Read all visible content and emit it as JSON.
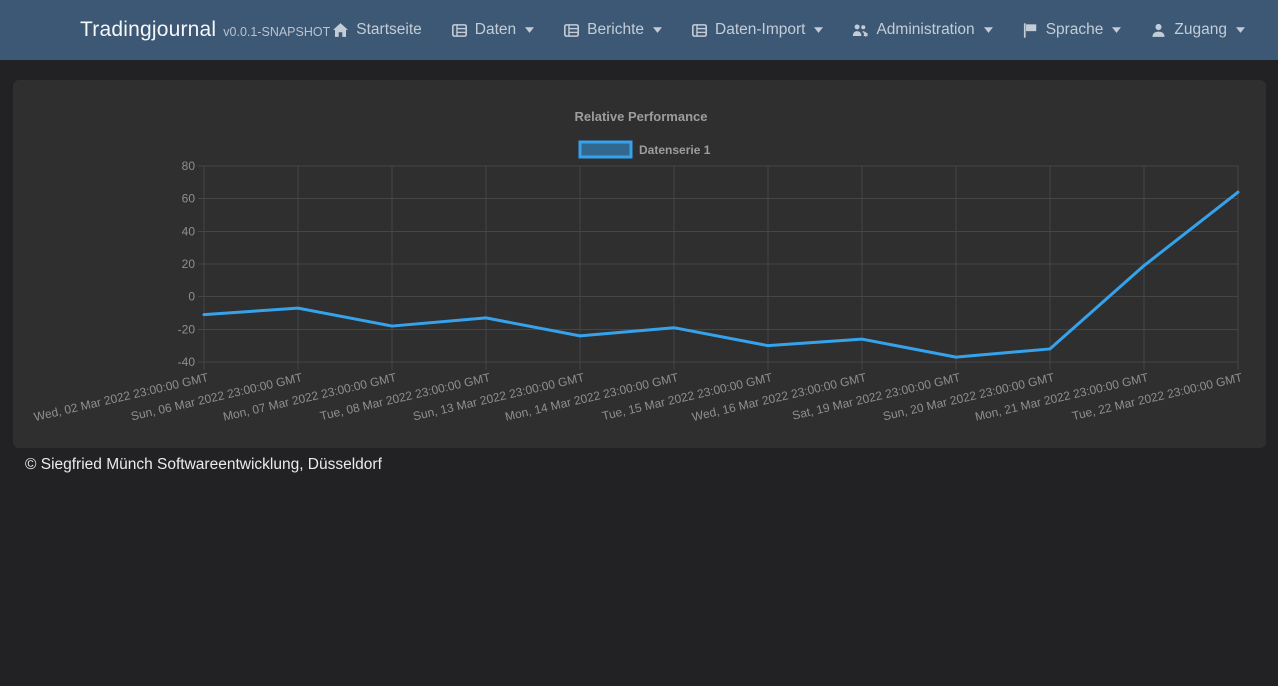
{
  "navbar": {
    "brand": "Tradingjournal",
    "version": "v0.0.1-SNAPSHOT",
    "background": "#3d5874",
    "items": [
      {
        "label": "Startseite",
        "icon": "home-icon",
        "dropdown": false
      },
      {
        "label": "Daten",
        "icon": "table-icon",
        "dropdown": true
      },
      {
        "label": "Berichte",
        "icon": "table-icon",
        "dropdown": true
      },
      {
        "label": "Daten-Import",
        "icon": "table-icon",
        "dropdown": true
      },
      {
        "label": "Administration",
        "icon": "users-gear-icon",
        "dropdown": true
      },
      {
        "label": "Sprache",
        "icon": "flag-icon",
        "dropdown": true
      },
      {
        "label": "Zugang",
        "icon": "user-icon",
        "dropdown": true
      }
    ]
  },
  "chart_data": {
    "type": "line",
    "title": "Relative Performance",
    "legend_position": "top",
    "grid": true,
    "grid_color": "#464646",
    "line_color": "#36a2eb",
    "legend_box_fill": "rgba(54,162,235,0.5)",
    "ylim": [
      -40,
      80
    ],
    "yticks": [
      80,
      60,
      40,
      20,
      0,
      -20,
      -40
    ],
    "categories": [
      "Wed, 02 Mar 2022 23:00:00 GMT",
      "Sun, 06 Mar 2022 23:00:00 GMT",
      "Mon, 07 Mar 2022 23:00:00 GMT",
      "Tue, 08 Mar 2022 23:00:00 GMT",
      "Sun, 13 Mar 2022 23:00:00 GMT",
      "Mon, 14 Mar 2022 23:00:00 GMT",
      "Tue, 15 Mar 2022 23:00:00 GMT",
      "Wed, 16 Mar 2022 23:00:00 GMT",
      "Sat, 19 Mar 2022 23:00:00 GMT",
      "Sun, 20 Mar 2022 23:00:00 GMT",
      "Mon, 21 Mar 2022 23:00:00 GMT",
      "Tue, 22 Mar 2022 23:00:00 GMT"
    ],
    "series": [
      {
        "name": "Datenserie 1",
        "values": [
          -11,
          -7,
          -18,
          -13,
          -24,
          -19,
          -30,
          -26,
          -37,
          -32,
          19,
          64
        ]
      }
    ]
  },
  "footer": {
    "copyright": "© Siegfried Münch Softwareentwicklung, Düsseldorf"
  }
}
